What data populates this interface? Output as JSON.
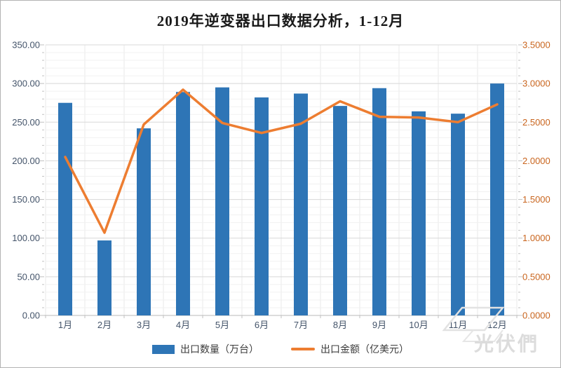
{
  "title": "2019年逆变器出口数据分析，1-12月",
  "watermark": {
    "text": "光伏們"
  },
  "colors": {
    "bar": "#2E75B6",
    "line": "#ED7D31",
    "left_axis_label": "#44546A",
    "right_axis_label": "#C9651E",
    "x_axis_label": "#44546A",
    "grid_major": "#D8D8D8",
    "grid_minor": "#F1F1F1",
    "grid_vertical": "#E9E9E9",
    "axis_line": "#C6C6C6",
    "tick": "#C0C0C0",
    "legend_text": "#3B3B3B",
    "watermark": "#DCDCDC"
  },
  "chart_data": {
    "type": "combo-bar-line",
    "title": "2019年逆变器出口数据分析，1-12月",
    "categories": [
      "1月",
      "2月",
      "3月",
      "4月",
      "5月",
      "6月",
      "7月",
      "8月",
      "9月",
      "10月",
      "11月",
      "12月"
    ],
    "series": [
      {
        "name": "出口数量（万台）",
        "type": "bar",
        "axis": "left",
        "color": "#2E75B6",
        "values": [
          275,
          97,
          242,
          289,
          295,
          282,
          287,
          271,
          294,
          264,
          261,
          300
        ]
      },
      {
        "name": "出口金额（亿美元）",
        "type": "line",
        "axis": "right",
        "color": "#ED7D31",
        "values": [
          2.05,
          1.07,
          2.47,
          2.92,
          2.49,
          2.36,
          2.48,
          2.77,
          2.57,
          2.56,
          2.5,
          2.73
        ]
      }
    ],
    "left_axis": {
      "min": 0,
      "max": 350,
      "major_step": 50,
      "minor_step": 10,
      "tick_labels": [
        "0.00",
        "50.00",
        "100.00",
        "150.00",
        "200.00",
        "250.00",
        "300.00",
        "350.00"
      ]
    },
    "right_axis": {
      "min": 0,
      "max": 3.5,
      "major_step": 0.5,
      "tick_labels": [
        "0.0000",
        "0.5000",
        "1.0000",
        "1.5000",
        "2.0000",
        "2.5000",
        "3.0000",
        "3.5000"
      ]
    },
    "grid": "horizontal-major-minor-and-vertical",
    "legend_position": "bottom"
  }
}
